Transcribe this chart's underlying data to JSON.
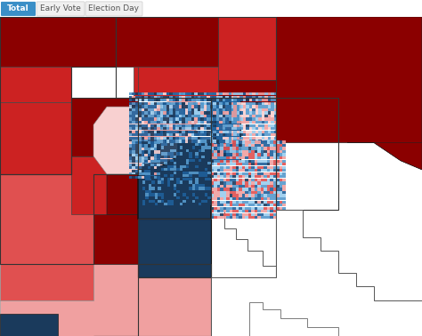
{
  "bg_color": "#ffffff",
  "tab_labels": [
    "Total",
    "Early Vote",
    "Election Day"
  ],
  "tab_active_color": "#3a8fc7",
  "tab_inactive_color": "#f0f0f0",
  "tab_text_active": "#ffffff",
  "tab_text_inactive": "#555555",
  "colors": {
    "dark_red": "#8b0000",
    "med_red": "#cc2222",
    "light_red": "#e05050",
    "pale_red": "#f0a0a0",
    "very_pale_red": "#f8d0d0",
    "dark_blue": "#1a3a5c",
    "med_blue": "#1f5f9a",
    "light_blue": "#5599cc",
    "pale_blue": "#99ccee",
    "very_pale_blue": "#cce5f5",
    "white_area": "#ffffff",
    "outline": "#333333"
  },
  "map": {
    "xlim": [
      0,
      474
    ],
    "ylim": [
      0,
      363
    ],
    "tab_height": 18
  }
}
